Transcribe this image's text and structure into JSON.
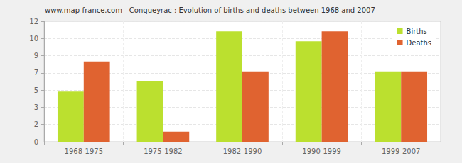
{
  "chart_data": {
    "type": "bar",
    "title": "www.map-france.com - Conqueyrac : Evolution of births and deaths between 1968 and 2007",
    "categories": [
      "1968-1975",
      "1975-1982",
      "1982-1990",
      "1990-1999",
      "1999-2007"
    ],
    "series": [
      {
        "name": "Births",
        "color": "#bbe02f",
        "values": [
          5,
          6,
          11,
          10,
          7
        ]
      },
      {
        "name": "Deaths",
        "color": "#e06330",
        "values": [
          8,
          1,
          7,
          11,
          7
        ]
      }
    ],
    "ylim": [
      0,
      12
    ],
    "yticks": [
      0,
      {
        "value": 1.714,
        "label": "2"
      },
      {
        "value": 3.429,
        "label": "3"
      },
      {
        "value": 5.143,
        "label": "5"
      },
      {
        "value": 6.857,
        "label": "7"
      },
      {
        "value": 8.571,
        "label": "9"
      },
      {
        "value": 10.286,
        "label": "10"
      },
      12
    ],
    "grid": true,
    "legend": "top-right"
  }
}
